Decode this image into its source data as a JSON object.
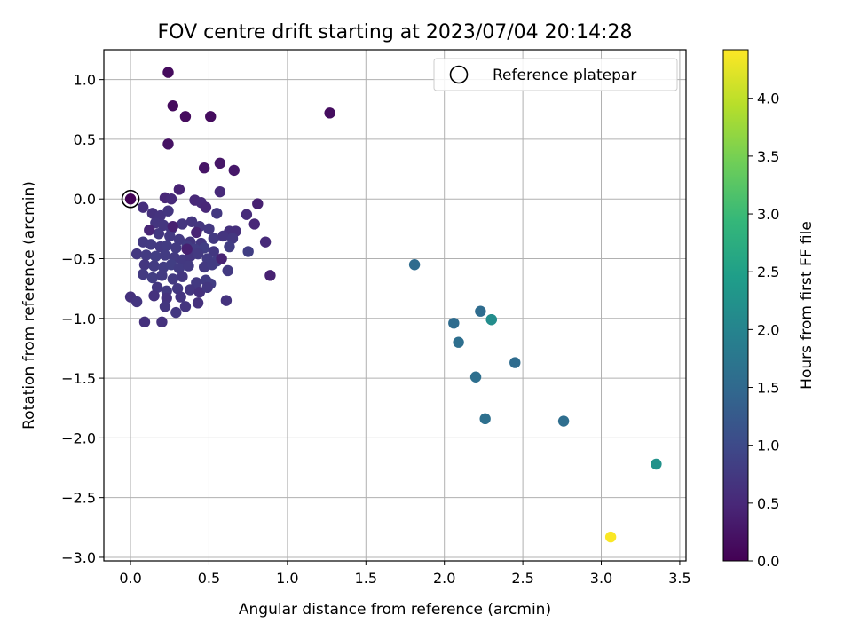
{
  "chart_data": {
    "type": "scatter",
    "title": "FOV centre drift starting at 2023/07/04 20:14:28",
    "xlabel": "Angular distance from reference (arcmin)",
    "ylabel": "Rotation from reference (arcmin)",
    "xlim": [
      -0.17,
      3.54
    ],
    "ylim": [
      -3.03,
      1.25
    ],
    "x_ticks": [
      "0.0",
      "0.5",
      "1.0",
      "1.5",
      "2.0",
      "2.5",
      "3.0",
      "3.5"
    ],
    "y_ticks": [
      "−3.0",
      "−2.5",
      "−2.0",
      "−1.5",
      "−1.0",
      "−0.5",
      "0.0",
      "0.5",
      "1.0"
    ],
    "grid": true,
    "legend": {
      "position": "top-right",
      "entries": [
        "Reference platepar"
      ]
    },
    "colorbar": {
      "label": "Hours from first FF file",
      "colormap": "viridis",
      "range": [
        0.0,
        4.42
      ],
      "ticks": [
        "0.0",
        "0.5",
        "1.0",
        "1.5",
        "2.0",
        "2.5",
        "3.0",
        "3.5",
        "4.0"
      ]
    },
    "colormap_stops": [
      "#440154",
      "#482878",
      "#3e4989",
      "#31688e",
      "#26828e",
      "#1f9e89",
      "#35b779",
      "#6ece58",
      "#b5de2b",
      "#fde725"
    ],
    "reference_point": {
      "x": 0.0,
      "y": 0.0
    },
    "points": [
      {
        "x": 0.0,
        "y": 0.0,
        "h": 0.05
      },
      {
        "x": 0.24,
        "y": 1.06,
        "h": 0.12
      },
      {
        "x": 0.27,
        "y": 0.78,
        "h": 0.12
      },
      {
        "x": 0.35,
        "y": 0.69,
        "h": 0.14
      },
      {
        "x": 0.51,
        "y": 0.69,
        "h": 0.14
      },
      {
        "x": 1.27,
        "y": 0.72,
        "h": 0.15
      },
      {
        "x": 0.24,
        "y": 0.46,
        "h": 0.22
      },
      {
        "x": 0.47,
        "y": 0.26,
        "h": 0.24
      },
      {
        "x": 0.57,
        "y": 0.3,
        "h": 0.26
      },
      {
        "x": 0.66,
        "y": 0.24,
        "h": 0.28
      },
      {
        "x": 0.31,
        "y": 0.08,
        "h": 0.42
      },
      {
        "x": 0.57,
        "y": 0.06,
        "h": 0.52
      },
      {
        "x": 0.22,
        "y": 0.01,
        "h": 0.48
      },
      {
        "x": 0.26,
        "y": 0.0,
        "h": 0.52
      },
      {
        "x": 0.41,
        "y": -0.01,
        "h": 0.5
      },
      {
        "x": 0.45,
        "y": -0.03,
        "h": 0.52
      },
      {
        "x": 0.48,
        "y": -0.07,
        "h": 0.48
      },
      {
        "x": 0.81,
        "y": -0.04,
        "h": 0.4
      },
      {
        "x": 0.08,
        "y": -0.07,
        "h": 0.6
      },
      {
        "x": 0.14,
        "y": -0.12,
        "h": 0.62
      },
      {
        "x": 0.19,
        "y": -0.14,
        "h": 0.65
      },
      {
        "x": 0.24,
        "y": -0.1,
        "h": 0.68
      },
      {
        "x": 0.55,
        "y": -0.12,
        "h": 0.72
      },
      {
        "x": 0.74,
        "y": -0.13,
        "h": 0.55
      },
      {
        "x": 0.79,
        "y": -0.21,
        "h": 0.48
      },
      {
        "x": 0.16,
        "y": -0.2,
        "h": 0.68
      },
      {
        "x": 0.21,
        "y": -0.22,
        "h": 0.7
      },
      {
        "x": 0.26,
        "y": -0.25,
        "h": 0.72
      },
      {
        "x": 0.33,
        "y": -0.21,
        "h": 0.7
      },
      {
        "x": 0.39,
        "y": -0.19,
        "h": 0.68
      },
      {
        "x": 0.44,
        "y": -0.23,
        "h": 0.7
      },
      {
        "x": 0.5,
        "y": -0.25,
        "h": 0.72
      },
      {
        "x": 0.63,
        "y": -0.27,
        "h": 0.62
      },
      {
        "x": 0.67,
        "y": -0.27,
        "h": 0.6
      },
      {
        "x": 0.86,
        "y": -0.36,
        "h": 0.52
      },
      {
        "x": 0.18,
        "y": -0.29,
        "h": 0.72
      },
      {
        "x": 0.25,
        "y": -0.31,
        "h": 0.74
      },
      {
        "x": 0.31,
        "y": -0.34,
        "h": 0.74
      },
      {
        "x": 0.38,
        "y": -0.36,
        "h": 0.7
      },
      {
        "x": 0.45,
        "y": -0.37,
        "h": 0.72
      },
      {
        "x": 0.53,
        "y": -0.33,
        "h": 0.74
      },
      {
        "x": 0.59,
        "y": -0.31,
        "h": 0.68
      },
      {
        "x": 0.65,
        "y": -0.33,
        "h": 0.72
      },
      {
        "x": 0.08,
        "y": -0.36,
        "h": 0.74
      },
      {
        "x": 0.13,
        "y": -0.38,
        "h": 0.76
      },
      {
        "x": 0.19,
        "y": -0.4,
        "h": 0.74
      },
      {
        "x": 0.23,
        "y": -0.39,
        "h": 0.78
      },
      {
        "x": 0.29,
        "y": -0.41,
        "h": 0.76
      },
      {
        "x": 0.36,
        "y": -0.39,
        "h": 0.78
      },
      {
        "x": 0.41,
        "y": -0.42,
        "h": 0.8
      },
      {
        "x": 0.47,
        "y": -0.41,
        "h": 0.82
      },
      {
        "x": 0.53,
        "y": -0.44,
        "h": 0.72
      },
      {
        "x": 0.63,
        "y": -0.4,
        "h": 0.8
      },
      {
        "x": 0.75,
        "y": -0.44,
        "h": 0.82
      },
      {
        "x": 0.04,
        "y": -0.46,
        "h": 0.72
      },
      {
        "x": 0.1,
        "y": -0.47,
        "h": 0.76
      },
      {
        "x": 0.16,
        "y": -0.48,
        "h": 0.8
      },
      {
        "x": 0.22,
        "y": -0.47,
        "h": 0.78
      },
      {
        "x": 0.28,
        "y": -0.49,
        "h": 0.76
      },
      {
        "x": 0.33,
        "y": -0.51,
        "h": 0.74
      },
      {
        "x": 0.38,
        "y": -0.48,
        "h": 0.7
      },
      {
        "x": 0.43,
        "y": -0.46,
        "h": 0.76
      },
      {
        "x": 0.49,
        "y": -0.5,
        "h": 0.78
      },
      {
        "x": 0.55,
        "y": -0.52,
        "h": 0.8
      },
      {
        "x": 0.09,
        "y": -0.55,
        "h": 0.7
      },
      {
        "x": 0.15,
        "y": -0.56,
        "h": 0.78
      },
      {
        "x": 0.21,
        "y": -0.57,
        "h": 0.8
      },
      {
        "x": 0.26,
        "y": -0.55,
        "h": 0.82
      },
      {
        "x": 0.31,
        "y": -0.58,
        "h": 0.78
      },
      {
        "x": 0.37,
        "y": -0.56,
        "h": 0.76
      },
      {
        "x": 0.47,
        "y": -0.57,
        "h": 0.74
      },
      {
        "x": 0.52,
        "y": -0.55,
        "h": 0.78
      },
      {
        "x": 0.62,
        "y": -0.6,
        "h": 0.76
      },
      {
        "x": 0.89,
        "y": -0.64,
        "h": 0.4
      },
      {
        "x": 0.08,
        "y": -0.63,
        "h": 0.76
      },
      {
        "x": 0.14,
        "y": -0.66,
        "h": 0.8
      },
      {
        "x": 0.2,
        "y": -0.64,
        "h": 0.78
      },
      {
        "x": 0.27,
        "y": -0.67,
        "h": 0.76
      },
      {
        "x": 0.33,
        "y": -0.65,
        "h": 0.72
      },
      {
        "x": 0.42,
        "y": -0.7,
        "h": 0.74
      },
      {
        "x": 0.48,
        "y": -0.68,
        "h": 0.78
      },
      {
        "x": 0.51,
        "y": -0.71,
        "h": 0.8
      },
      {
        "x": 0.17,
        "y": -0.74,
        "h": 0.72
      },
      {
        "x": 0.23,
        "y": -0.77,
        "h": 0.76
      },
      {
        "x": 0.3,
        "y": -0.75,
        "h": 0.74
      },
      {
        "x": 0.38,
        "y": -0.76,
        "h": 0.7
      },
      {
        "x": 0.44,
        "y": -0.78,
        "h": 0.62
      },
      {
        "x": 0.49,
        "y": -0.74,
        "h": 0.72
      },
      {
        "x": 0.0,
        "y": -0.82,
        "h": 0.62
      },
      {
        "x": 0.15,
        "y": -0.81,
        "h": 0.64
      },
      {
        "x": 0.23,
        "y": -0.83,
        "h": 0.66
      },
      {
        "x": 0.32,
        "y": -0.82,
        "h": 0.68
      },
      {
        "x": 0.43,
        "y": -0.87,
        "h": 0.62
      },
      {
        "x": 0.61,
        "y": -0.85,
        "h": 0.66
      },
      {
        "x": 0.04,
        "y": -0.86,
        "h": 0.68
      },
      {
        "x": 0.22,
        "y": -0.9,
        "h": 0.7
      },
      {
        "x": 0.35,
        "y": -0.9,
        "h": 0.68
      },
      {
        "x": 0.29,
        "y": -0.95,
        "h": 0.72
      },
      {
        "x": 0.09,
        "y": -1.03,
        "h": 0.62
      },
      {
        "x": 0.2,
        "y": -1.03,
        "h": 0.64
      },
      {
        "x": 0.36,
        "y": -0.42,
        "h": 0.4
      },
      {
        "x": 0.42,
        "y": -0.28,
        "h": 0.44
      },
      {
        "x": 0.12,
        "y": -0.26,
        "h": 0.46
      },
      {
        "x": 0.58,
        "y": -0.5,
        "h": 0.44
      },
      {
        "x": 0.27,
        "y": -0.23,
        "h": 0.4
      },
      {
        "x": 1.81,
        "y": -0.55,
        "h": 1.55
      },
      {
        "x": 2.23,
        "y": -0.94,
        "h": 1.55
      },
      {
        "x": 2.06,
        "y": -1.04,
        "h": 1.55
      },
      {
        "x": 2.3,
        "y": -1.01,
        "h": 2.1
      },
      {
        "x": 2.3,
        "y": -1.01,
        "h": 2.15
      },
      {
        "x": 2.09,
        "y": -1.2,
        "h": 1.6
      },
      {
        "x": 2.45,
        "y": -1.37,
        "h": 1.55
      },
      {
        "x": 2.2,
        "y": -1.49,
        "h": 1.6
      },
      {
        "x": 2.26,
        "y": -1.84,
        "h": 1.62
      },
      {
        "x": 2.76,
        "y": -1.86,
        "h": 1.58
      },
      {
        "x": 3.35,
        "y": -2.22,
        "h": 2.25
      },
      {
        "x": 3.06,
        "y": -2.83,
        "h": 4.4
      }
    ]
  }
}
